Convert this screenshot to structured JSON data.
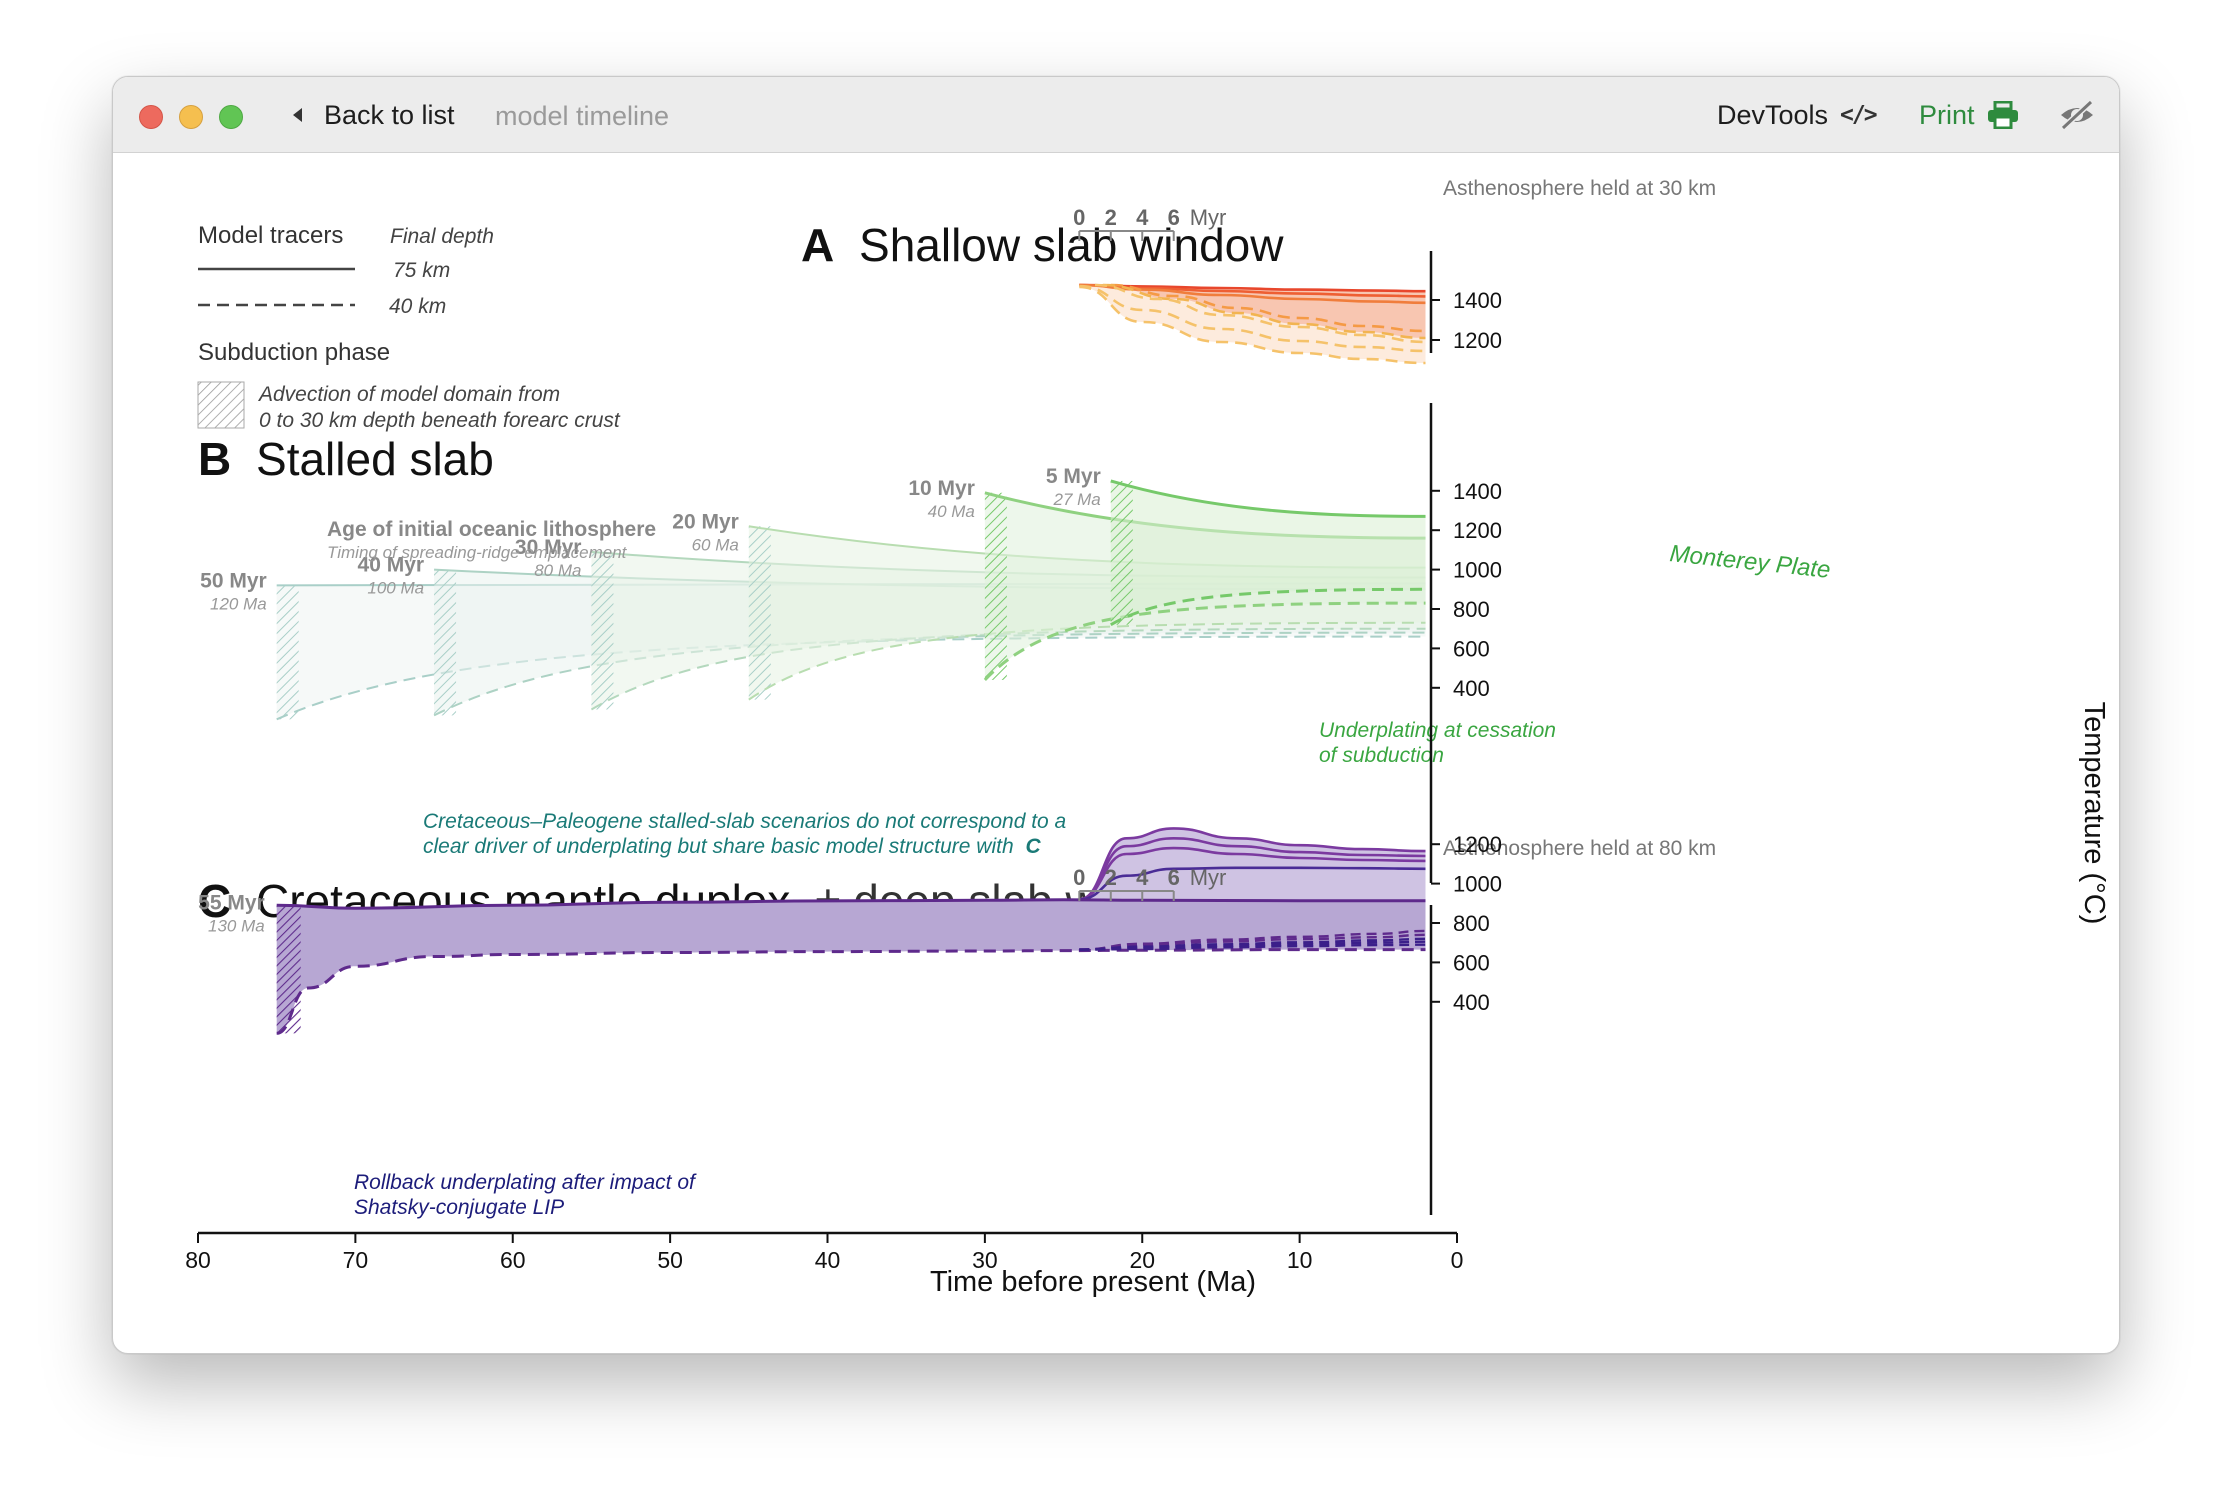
{
  "window": {
    "back_label": "Back to list",
    "subtitle": "model timeline",
    "devtools_label": "DevTools",
    "devtools_icon": "code-icon",
    "print_label": "Print",
    "print_icon": "printer-icon",
    "visibility_icon": "eye-slash-icon",
    "colors": {
      "print": "#2e8b3e"
    }
  },
  "legend": {
    "tracers_title": "Model tracers",
    "final_depth": "Final depth",
    "solid_label": "75 km",
    "dashed_label": "40 km",
    "phase_title": "Subduction phase",
    "phase_line1": "Advection of model domain from",
    "phase_line2": "0 to 30 km depth beneath forearc crust"
  },
  "chart_data": [
    {
      "type": "line",
      "panel": "A",
      "title_letter": "A",
      "title": "Shallow slab window",
      "inset": {
        "title": "Asthenosphere held at 30 km",
        "ticks": [
          "0",
          "2",
          "4",
          "6"
        ],
        "unit": "Myr",
        "start_ma": 24
      },
      "ylim": [
        1050,
        1500
      ],
      "yticks": [
        1400,
        1200
      ],
      "colors": [
        "#e8472c",
        "#ee5f33",
        "#f07d3c",
        "#f59a45",
        "#f2b451",
        "#f5c26a"
      ],
      "series": [
        {
          "style": "solid",
          "x": [
            24,
            20,
            15,
            10,
            5,
            2
          ],
          "y": [
            1475,
            1468,
            1460,
            1452,
            1447,
            1444
          ]
        },
        {
          "style": "solid",
          "x": [
            24,
            20,
            15,
            10,
            5,
            2
          ],
          "y": [
            1475,
            1460,
            1445,
            1432,
            1422,
            1418
          ]
        },
        {
          "style": "solid",
          "x": [
            24,
            20,
            15,
            10,
            5,
            2
          ],
          "y": [
            1475,
            1452,
            1425,
            1405,
            1392,
            1386
          ]
        },
        {
          "style": "dashed",
          "x": [
            22,
            18,
            14,
            10,
            6,
            2
          ],
          "y": [
            1475,
            1420,
            1360,
            1310,
            1270,
            1245
          ]
        },
        {
          "style": "dashed",
          "x": [
            22.5,
            18,
            14,
            10,
            6,
            2
          ],
          "y": [
            1475,
            1405,
            1335,
            1280,
            1240,
            1210
          ]
        },
        {
          "style": "dashed",
          "x": [
            23,
            19,
            15,
            10,
            6,
            2
          ],
          "y": [
            1475,
            1405,
            1325,
            1265,
            1225,
            1190
          ]
        },
        {
          "style": "dashed",
          "x": [
            24,
            20,
            15,
            10,
            6,
            2
          ],
          "y": [
            1470,
            1350,
            1255,
            1195,
            1165,
            1145
          ]
        },
        {
          "style": "dashed",
          "x": [
            24,
            20,
            15,
            10,
            6,
            2
          ],
          "y": [
            1465,
            1290,
            1190,
            1135,
            1105,
            1085
          ]
        }
      ]
    },
    {
      "type": "line",
      "panel": "B",
      "title_letter": "B",
      "title": "Stalled slab",
      "age_title": "Age of initial oceanic lithosphere",
      "age_subtitle": "Timing of spreading-ridge emplacement",
      "ylim": [
        200,
        1480
      ],
      "yticks": [
        1400,
        1200,
        1000,
        800,
        600,
        400
      ],
      "plate_label": "Monterey Plate",
      "underplating_label_line1": "Underplating at cessation",
      "underplating_label_line2": "of subduction",
      "note_line1": "Cretaceous–Paleogene stalled-slab scenarios do not correspond to a",
      "note_line2": "clear driver of underplating but share basic model structure with",
      "note_ref": "C",
      "colors": {
        "old": "#a9cfc8",
        "mid": "#b8ddb0",
        "young": "#76c96a",
        "note": "#1a7a77",
        "green_text": "#3aa641"
      },
      "series": [
        {
          "age": "50 Myr",
          "ma": "120 Ma",
          "start": 75,
          "top": 920,
          "bottom": 240,
          "end_top": 930,
          "end_bottom": 660
        },
        {
          "age": "40 Myr",
          "ma": "100 Ma",
          "start": 65,
          "top": 1000,
          "bottom": 260,
          "end_top": 900,
          "end_bottom": 680
        },
        {
          "age": "30 Myr",
          "ma": "80 Ma",
          "start": 55,
          "top": 1090,
          "bottom": 290,
          "end_top": 960,
          "end_bottom": 700
        },
        {
          "age": "20 Myr",
          "ma": "60 Ma",
          "start": 45,
          "top": 1220,
          "bottom": 340,
          "end_top": 1010,
          "end_bottom": 730
        },
        {
          "age": "10 Myr",
          "ma": "40 Ma",
          "start": 30,
          "top": 1390,
          "bottom": 440,
          "end_top": 1160,
          "end_bottom": 830
        },
        {
          "age": "5 Myr",
          "ma": "27 Ma",
          "start": 22,
          "top": 1450,
          "bottom": 720,
          "end_top": 1270,
          "end_bottom": 900
        }
      ]
    },
    {
      "type": "area",
      "panel": "C",
      "title_letter": "C",
      "title": "Cretaceous mantle duplex",
      "title_suffix": "± deep slab window",
      "inset": {
        "title": "Asthenosphere held at 80 km",
        "ticks": [
          "0",
          "2",
          "4",
          "6"
        ],
        "unit": "Myr",
        "start_ma": 24
      },
      "start": {
        "age": "55 Myr",
        "ma": "130 Ma",
        "x": 75
      },
      "rollback_line1": "Rollback underplating after impact of",
      "rollback_line2": "Shatsky-conjugate LIP",
      "ylim": [
        200,
        1290
      ],
      "yticks": [
        1200,
        1000,
        800,
        600,
        400
      ],
      "colors": {
        "fill": "#b7a7d3",
        "line": "#5e2a8c",
        "dark": "#3b1f8a",
        "text": "#1c1c7a"
      },
      "top": {
        "x": [
          75,
          70,
          60,
          50,
          40,
          30,
          25,
          20,
          10,
          2
        ],
        "y": [
          890,
          875,
          890,
          905,
          912,
          915,
          918,
          915,
          913,
          913
        ]
      },
      "bottom": {
        "x": [
          75,
          73,
          70,
          65,
          60,
          50,
          40,
          30,
          25,
          20,
          10,
          2
        ],
        "y": [
          240,
          470,
          580,
          630,
          640,
          650,
          655,
          658,
          660,
          662,
          665,
          665
        ]
      },
      "hot": [
        {
          "x": [
            24,
            21,
            18,
            14,
            10,
            6,
            2
          ],
          "y": [
            920,
            1230,
            1280,
            1230,
            1195,
            1175,
            1165
          ]
        },
        {
          "x": [
            24,
            21,
            18,
            14,
            10,
            6,
            2
          ],
          "y": [
            920,
            1190,
            1230,
            1190,
            1160,
            1145,
            1140
          ]
        },
        {
          "x": [
            24,
            21,
            18,
            14,
            10,
            6,
            2
          ],
          "y": [
            920,
            1150,
            1180,
            1150,
            1130,
            1120,
            1115
          ]
        },
        {
          "x": [
            24,
            21,
            18,
            14,
            10,
            6,
            2
          ],
          "y": [
            920,
            1040,
            1075,
            1080,
            1080,
            1078,
            1075
          ]
        }
      ],
      "cool": [
        {
          "x": [
            24,
            20,
            15,
            10,
            5,
            2
          ],
          "y": [
            665,
            695,
            715,
            730,
            745,
            760
          ]
        },
        {
          "x": [
            24,
            20,
            15,
            10,
            5,
            2
          ],
          "y": [
            665,
            690,
            705,
            718,
            728,
            740
          ]
        },
        {
          "x": [
            24,
            20,
            15,
            10,
            5,
            2
          ],
          "y": [
            665,
            680,
            692,
            702,
            712,
            720
          ]
        },
        {
          "x": [
            24,
            20,
            15,
            10,
            5,
            2
          ],
          "y": [
            665,
            675,
            684,
            692,
            700,
            705
          ]
        },
        {
          "x": [
            24,
            20,
            15,
            10,
            5,
            2
          ],
          "y": [
            665,
            668,
            676,
            682,
            688,
            690
          ]
        }
      ]
    }
  ],
  "axes": {
    "xlabel": "Time before present (Ma)",
    "xlim": [
      80,
      0
    ],
    "xticks": [
      80,
      70,
      60,
      50,
      40,
      30,
      20,
      10,
      0
    ],
    "ylabel": "Temperature (°C)"
  }
}
